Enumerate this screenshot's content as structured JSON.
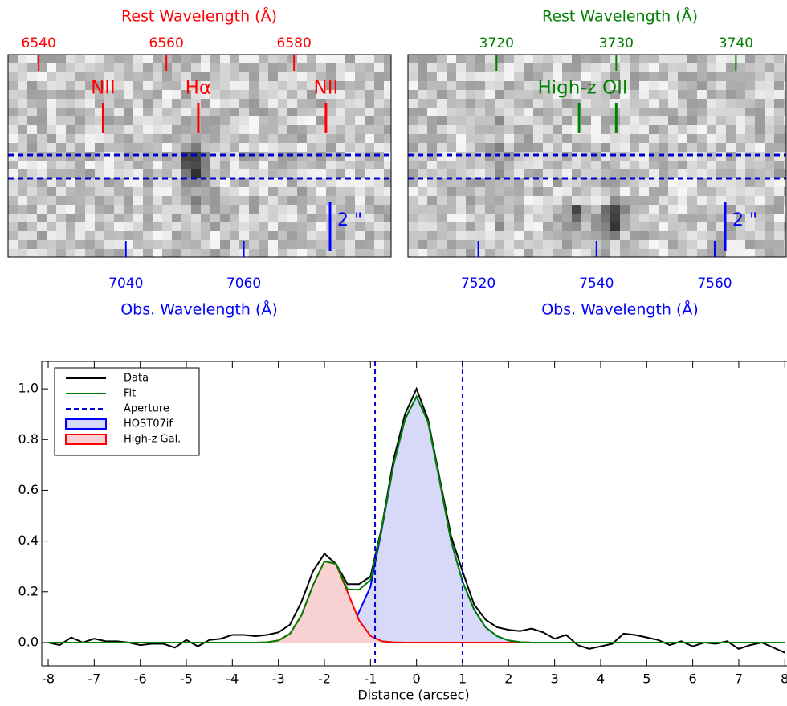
{
  "chart_data": [
    {
      "type": "image",
      "x2label": "Rest Wavelength (Å)",
      "x2color": "#ff0000",
      "x2lim": [
        6535.2,
        6595.2
      ],
      "x2ticks": [
        6540,
        6560,
        6580
      ],
      "xlabel": "Obs. Wavelength (Å)",
      "color": "#0000ff",
      "xlim": [
        7020,
        7085
      ],
      "xticks": [
        7040,
        7060
      ],
      "annotations": [
        {
          "text": "NII",
          "x": 6550.1,
          "lines": [
            6550.1
          ]
        },
        {
          "text": "Hα",
          "x": 6565.0,
          "lines": [
            6565.0
          ]
        },
        {
          "text": "NII",
          "x": 6585.0,
          "lines": [
            6585.0
          ]
        }
      ],
      "scale_bar": "2 \""
    },
    {
      "type": "image",
      "x2label": "Rest Wavelength (Å)",
      "x2color": "#008000",
      "x2lim": [
        3712.6,
        3744.2
      ],
      "x2ticks": [
        3720,
        3730,
        3740
      ],
      "xlabel": "Obs. Wavelength (Å)",
      "color": "#0000ff",
      "xlim": [
        7508.1,
        7572.1
      ],
      "xticks": [
        7520,
        7540,
        7560
      ],
      "annotations": [
        {
          "text": "High-z OII",
          "x": 3727.2,
          "lines": [
            3726.9,
            3730.0
          ]
        }
      ],
      "scale_bar": "2 \""
    },
    {
      "type": "line",
      "xlabel": "Distance (arcsec)",
      "xlim": [
        -8.14,
        8.03
      ],
      "xticks": [
        -8,
        -7,
        -6,
        -5,
        -4,
        -3,
        -2,
        -1,
        0,
        1,
        2,
        3,
        4,
        5,
        6,
        7,
        8
      ],
      "ylim": [
        -0.092,
        1.108
      ],
      "yticks": [
        {
          "value": 0,
          "label": "0.0"
        },
        0.2,
        0.4,
        0.6,
        0.8,
        {
          "value": 1,
          "label": "1.0"
        }
      ],
      "legend": "upper left",
      "x": [
        -8,
        -7.75,
        -7.5,
        -7.25,
        -7,
        -6.75,
        -6.5,
        -6.25,
        -6,
        -5.75,
        -5.5,
        -5.25,
        -5,
        -4.75,
        -4.5,
        -4.25,
        -4,
        -3.75,
        -3.5,
        -3.25,
        -3,
        -2.75,
        -2.5,
        -2.25,
        -2,
        -1.75,
        -1.5,
        -1.25,
        -1,
        -0.75,
        -0.5,
        -0.25,
        0,
        0.25,
        0.5,
        0.75,
        1,
        1.25,
        1.5,
        1.75,
        2,
        2.25,
        2.5,
        2.75,
        3,
        3.25,
        3.5,
        3.75,
        4,
        4.25,
        4.5,
        4.75,
        5,
        5.25,
        5.5,
        5.75,
        6,
        6.25,
        6.5,
        6.75,
        7,
        7.25,
        7.5,
        7.75,
        8
      ],
      "series": [
        {
          "name": "Data",
          "color": "#000000",
          "values": [
            0,
            -0.01,
            0.02,
            0,
            0.015,
            0.005,
            0.005,
            0,
            -0.01,
            -0.005,
            -0.005,
            -0.02,
            0.01,
            -0.015,
            0.01,
            0.015,
            0.03,
            0.03,
            0.025,
            0.03,
            0.04,
            0.07,
            0.16,
            0.28,
            0.35,
            0.31,
            0.23,
            0.23,
            0.26,
            0.46,
            0.72,
            0.9,
            1.0,
            0.88,
            0.65,
            0.42,
            0.28,
            0.15,
            0.09,
            0.06,
            0.05,
            0.045,
            0.055,
            0.04,
            0.015,
            0.03,
            -0.01,
            -0.025,
            -0.015,
            -0.005,
            0.035,
            0.03,
            0.02,
            0.01,
            -0.01,
            0.005,
            -0.015,
            0,
            -0.005,
            0.005,
            -0.025,
            -0.01,
            0,
            -0.02,
            -0.04
          ]
        },
        {
          "name": "Fit",
          "color": "#008000",
          "values": [
            0,
            0,
            0,
            0,
            0,
            0,
            0,
            0,
            0,
            0,
            0,
            0,
            0,
            0,
            0,
            0,
            0,
            0,
            0,
            0.001,
            0.008,
            0.034,
            0.107,
            0.225,
            0.32,
            0.31,
            0.21,
            0.208,
            0.246,
            0.455,
            0.701,
            0.88,
            0.97,
            0.87,
            0.64,
            0.4,
            0.24,
            0.13,
            0.06,
            0.025,
            0.008,
            0.002,
            0,
            0,
            0,
            0,
            0,
            0,
            0,
            0,
            0,
            0,
            0,
            0,
            0,
            0,
            0,
            0,
            0,
            0,
            0,
            0,
            0,
            0,
            0
          ]
        },
        {
          "name": "HOST07if",
          "color": "#0000ff",
          "fill": "#d8d8f8",
          "values": [
            0,
            0,
            0,
            0,
            0,
            0,
            0,
            0,
            0,
            0,
            0,
            0,
            0,
            0,
            0,
            0,
            0,
            0,
            0,
            0,
            0,
            0,
            0,
            0,
            0,
            0,
            0.01,
            0.12,
            0.22,
            0.45,
            0.7,
            0.88,
            0.97,
            0.87,
            0.64,
            0.4,
            0.24,
            0.13,
            0.06,
            0.025,
            0.008,
            0.002,
            0,
            0,
            0,
            0,
            0,
            0,
            0,
            0,
            0,
            0,
            0,
            0,
            0,
            0,
            0,
            0,
            0,
            0,
            0,
            0,
            0,
            0,
            0
          ]
        },
        {
          "name": "High-z Gal.",
          "color": "#ff0000",
          "fill": "#f8d2d2",
          "values": [
            0,
            0,
            0,
            0,
            0,
            0,
            0,
            0,
            0,
            0,
            0,
            0,
            0,
            0,
            0,
            0,
            0,
            0,
            0,
            0.001,
            0.008,
            0.034,
            0.107,
            0.225,
            0.32,
            0.31,
            0.2,
            0.088,
            0.026,
            0.005,
            0.001,
            0,
            0,
            0,
            0,
            0,
            0,
            0,
            0,
            0,
            0,
            0,
            0,
            0,
            0,
            0,
            0,
            0,
            0,
            0,
            0,
            0,
            0,
            0,
            0,
            0,
            0,
            0,
            0,
            0,
            0,
            0,
            0,
            0,
            0
          ]
        }
      ],
      "aperture": {
        "name": "Aperture",
        "color": "#0000cc",
        "x": [
          -0.9,
          1.0
        ]
      }
    }
  ]
}
